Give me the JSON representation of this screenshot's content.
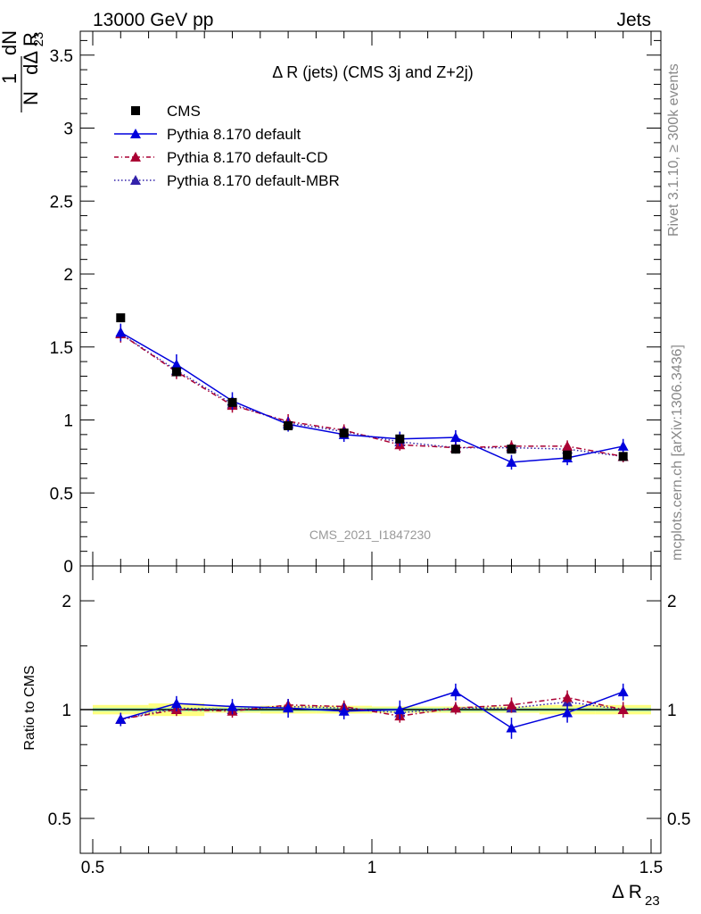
{
  "header": {
    "left": "13000 GeV pp",
    "right": "Jets"
  },
  "side": {
    "rivet": "Rivet 3.1.10, ≥ 300k events",
    "mcplots": "mcplots.cern.ch [arXiv:1306.3436]"
  },
  "chart_data": [
    {
      "type": "scatter",
      "title": "Δ R (jets) (CMS 3j and Z+2j)",
      "watermark": "CMS_2021_I1847230",
      "ylabel": {
        "top": "1",
        "bottom": "N",
        "top2": "dN",
        "bottom2": "dΔ R",
        "sub": "23"
      },
      "xlim": [
        0.5,
        1.5
      ],
      "ylim": [
        0,
        3.65
      ],
      "yticks": [
        "0",
        "0.5",
        "1",
        "1.5",
        "2",
        "2.5",
        "3",
        "3.5"
      ],
      "legend_position": "top-left",
      "series": [
        {
          "name": "CMS",
          "color": "#000000",
          "marker": "square",
          "x": [
            0.55,
            0.65,
            0.75,
            0.85,
            0.95,
            1.05,
            1.15,
            1.25,
            1.35,
            1.45
          ],
          "y": [
            1.7,
            1.33,
            1.12,
            0.96,
            0.91,
            0.87,
            0.8,
            0.8,
            0.76,
            0.75
          ],
          "err": [
            0.02,
            0.02,
            0.02,
            0.02,
            0.02,
            0.02,
            0.02,
            0.02,
            0.02,
            0.02
          ]
        },
        {
          "name": "Pythia 8.170 default",
          "color": "#0000dd",
          "marker": "triangle",
          "line": "solid",
          "x": [
            0.55,
            0.65,
            0.75,
            0.85,
            0.95,
            1.05,
            1.15,
            1.25,
            1.35,
            1.45
          ],
          "y": [
            1.6,
            1.38,
            1.13,
            0.97,
            0.9,
            0.87,
            0.88,
            0.71,
            0.74,
            0.82
          ],
          "err": [
            0.06,
            0.07,
            0.06,
            0.05,
            0.05,
            0.05,
            0.05,
            0.05,
            0.05,
            0.05
          ]
        },
        {
          "name": "Pythia 8.170 default-CD",
          "color": "#aa0033",
          "marker": "triangle",
          "line": "dashdot",
          "x": [
            0.55,
            0.65,
            0.75,
            0.85,
            0.95,
            1.05,
            1.15,
            1.25,
            1.35,
            1.45
          ],
          "y": [
            1.59,
            1.33,
            1.1,
            0.99,
            0.93,
            0.83,
            0.81,
            0.82,
            0.82,
            0.75
          ],
          "err": [
            0.06,
            0.05,
            0.05,
            0.05,
            0.04,
            0.04,
            0.04,
            0.04,
            0.04,
            0.04
          ]
        },
        {
          "name": "Pythia 8.170 default-MBR",
          "color": "#3322aa",
          "marker": "triangle",
          "line": "dotted",
          "x": [
            0.55,
            0.65,
            0.75,
            0.85,
            0.95,
            1.05,
            1.15,
            1.25,
            1.35,
            1.45
          ],
          "y": [
            1.59,
            1.34,
            1.11,
            0.98,
            0.92,
            0.85,
            0.81,
            0.81,
            0.8,
            0.75
          ],
          "err": [
            0.04,
            0.04,
            0.04,
            0.04,
            0.04,
            0.04,
            0.04,
            0.04,
            0.04,
            0.04
          ]
        }
      ]
    },
    {
      "type": "scatter",
      "ylabel": "Ratio to CMS",
      "xlabel": {
        "main": "Δ R",
        "sub": "23"
      },
      "xlim": [
        0.5,
        1.5
      ],
      "ylim": [
        0.4,
        2.4
      ],
      "yscale": "log",
      "xticks": [
        "0.5",
        "1",
        "1.5"
      ],
      "yticks": [
        "0.5",
        "1",
        "2"
      ],
      "band": {
        "x": [
          0.5,
          0.6,
          0.7,
          0.8,
          0.9,
          1.0,
          1.1,
          1.2,
          1.3,
          1.4,
          1.5
        ],
        "inner": [
          0.012,
          0.012,
          0.012,
          0.012,
          0.012,
          0.012,
          0.012,
          0.012,
          0.012,
          0.012
        ],
        "outer": [
          0.03,
          0.04,
          0.02,
          0.025,
          0.025,
          0.02,
          0.02,
          0.02,
          0.03,
          0.03
        ]
      },
      "series": [
        {
          "name": "Pythia 8.170 default",
          "color": "#0000dd",
          "y": [
            0.94,
            1.04,
            1.02,
            1.01,
            0.99,
            1.0,
            1.12,
            0.89,
            0.98,
            1.12
          ],
          "err": [
            0.04,
            0.05,
            0.05,
            0.06,
            0.05,
            0.06,
            0.06,
            0.06,
            0.06,
            0.06
          ]
        },
        {
          "name": "Pythia 8.170 default-CD",
          "color": "#aa0033",
          "y": [
            0.94,
            1.0,
            0.99,
            1.03,
            1.02,
            0.96,
            1.01,
            1.03,
            1.08,
            1.0
          ],
          "err": [
            0.04,
            0.04,
            0.04,
            0.04,
            0.04,
            0.04,
            0.04,
            0.05,
            0.05,
            0.05
          ]
        },
        {
          "name": "Pythia 8.170 default-MBR",
          "color": "#3322aa",
          "y": [
            0.94,
            1.01,
            1.0,
            1.02,
            1.01,
            0.98,
            1.01,
            1.01,
            1.05,
            1.0
          ],
          "err": [
            0.03,
            0.03,
            0.03,
            0.03,
            0.03,
            0.03,
            0.03,
            0.03,
            0.03,
            0.03
          ]
        }
      ]
    }
  ]
}
